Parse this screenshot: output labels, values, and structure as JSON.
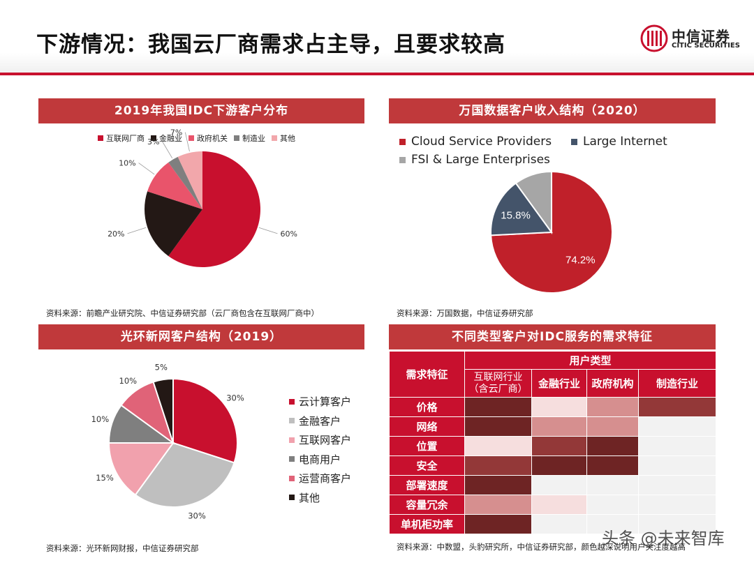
{
  "header": {
    "title": "下游情况：我国云厂商需求占主导，且要求较高",
    "logo_cn": "中信证券",
    "logo_en": "CITIC SECURITIES"
  },
  "colors": {
    "accent": "#c8102e",
    "panel_title_bg": "#c0393b"
  },
  "panel1": {
    "title": "2019年我国IDC下游客户分布",
    "source": "资料来源：前瞻产业研究院、中信证券研究部（云厂商包含在互联网厂商中）"
  },
  "panel2": {
    "title": "万国数据客户收入结构（2020）",
    "source": "资料来源：万国数据，中信证券研究部"
  },
  "panel3": {
    "title": "光环新网客户结构（2019）",
    "source": "资料来源：光环新网财报，中信证券研究部"
  },
  "panel4": {
    "title": "不同类型客户对IDC服务的需求特征",
    "source": "资料来源：中数盟，头豹研究所，中信证券研究部，颜色越深说明用户关注度越高"
  },
  "chart_data": [
    {
      "type": "pie",
      "title": "2019年我国IDC下游客户分布",
      "legend_position": "top",
      "series": [
        {
          "name": "互联网厂商",
          "value": 60,
          "label": "60%",
          "color": "#c8102e"
        },
        {
          "name": "金融业",
          "value": 20,
          "label": "20%",
          "color": "#231815"
        },
        {
          "name": "政府机关",
          "value": 10,
          "label": "10%",
          "color": "#e9546b"
        },
        {
          "name": "制造业",
          "value": 3,
          "label": "3%",
          "color": "#7f7f7f"
        },
        {
          "name": "其他",
          "value": 7,
          "label": "7%",
          "color": "#f2a7ab"
        }
      ]
    },
    {
      "type": "pie",
      "title": "万国数据客户收入结构（2020）",
      "legend_position": "top",
      "series": [
        {
          "name": "Cloud Service Providers",
          "value": 74.2,
          "label": "74.2%",
          "color": "#c0202a"
        },
        {
          "name": "Large Internet",
          "value": 15.8,
          "label": "15.8%",
          "color": "#44546a"
        },
        {
          "name": "FSI & Large Enterprises",
          "value": 10.0,
          "label": "",
          "color": "#a6a6a6"
        }
      ]
    },
    {
      "type": "pie",
      "title": "光环新网客户结构（2019）",
      "legend_position": "right",
      "series": [
        {
          "name": "云计算客户",
          "value": 30,
          "label": "30%",
          "color": "#c8102e"
        },
        {
          "name": "金融客户",
          "value": 30,
          "label": "30%",
          "color": "#bfbfbf"
        },
        {
          "name": "互联网客户",
          "value": 15,
          "label": "15%",
          "color": "#f1a1ad"
        },
        {
          "name": "电商用户",
          "value": 10,
          "label": "10%",
          "color": "#7f7f7f"
        },
        {
          "name": "运营商客户",
          "value": 10,
          "label": "10%",
          "color": "#e06378"
        },
        {
          "name": "其他",
          "value": 5,
          "label": "5%",
          "color": "#231815"
        }
      ]
    },
    {
      "type": "heatmap",
      "title": "不同类型客户对IDC服务的需求特征",
      "row_header": "需求特征",
      "col_group_header": "用户类型",
      "columns": [
        "互联网行业（含云厂商）",
        "金融行业",
        "政府机构",
        "制造行业"
      ],
      "rows": [
        "价格",
        "网络",
        "位置",
        "安全",
        "部署速度",
        "容量冗余",
        "单机柜功率"
      ],
      "levels": [
        [
          5,
          1,
          3,
          4
        ],
        [
          5,
          3,
          3,
          0
        ],
        [
          1,
          4,
          5,
          0
        ],
        [
          4,
          5,
          5,
          0
        ],
        [
          5,
          0,
          0,
          0
        ],
        [
          3,
          1,
          0,
          0
        ],
        [
          5,
          0,
          0,
          0
        ]
      ],
      "level_colors": [
        "#f2f2f2",
        "#f6dede",
        "#e3a1a1",
        "#d68f8f",
        "#933838",
        "#6e2424"
      ]
    }
  ],
  "watermark": "头条 @未来智库"
}
